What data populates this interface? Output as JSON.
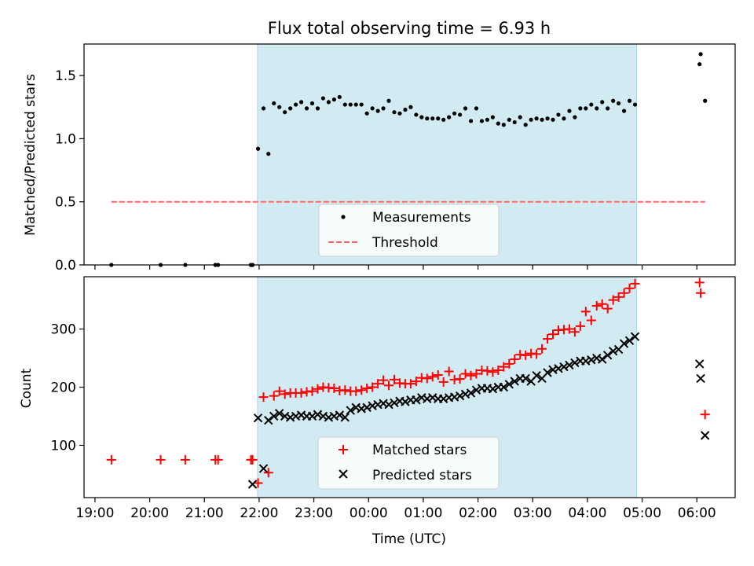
{
  "title": "Flux total observing time = 6.93 h",
  "colors": {
    "span": "#add8e6",
    "threshold": "#ff6666",
    "matched": "#ff0000",
    "predicted": "#000000",
    "measure": "#000000"
  },
  "chart_data": [
    {
      "type": "scatter",
      "ylabel": "Matched/Predicted stars",
      "xlabel": "",
      "xlim": [
        18.8,
        30.7
      ],
      "ylim": [
        0,
        1.75
      ],
      "yticks": [
        0,
        0.5,
        1,
        1.5
      ],
      "ytick_labels": [
        "0.0",
        "0.5",
        "1.0",
        "1.5"
      ],
      "grid": false,
      "legend_placement": "lower-center",
      "span": [
        21.97,
        28.9
      ],
      "series": [
        {
          "name": "Measurements",
          "marker": "dot",
          "x": [
            19.3,
            20.2,
            20.65,
            21.2,
            21.25,
            21.85,
            21.88,
            21.98,
            22.08,
            22.17,
            22.27,
            22.37,
            22.47,
            22.57,
            22.67,
            22.77,
            22.87,
            22.97,
            23.07,
            23.17,
            23.27,
            23.37,
            23.47,
            23.57,
            23.67,
            23.77,
            23.87,
            23.97,
            24.07,
            24.17,
            24.27,
            24.37,
            24.47,
            24.57,
            24.67,
            24.77,
            24.87,
            24.97,
            25.07,
            25.17,
            25.27,
            25.37,
            25.47,
            25.57,
            25.67,
            25.77,
            25.87,
            25.97,
            26.07,
            26.17,
            26.27,
            26.37,
            26.47,
            26.57,
            26.67,
            26.77,
            26.87,
            26.97,
            27.07,
            27.17,
            27.27,
            27.37,
            27.47,
            27.57,
            27.67,
            27.77,
            27.87,
            27.97,
            28.07,
            28.17,
            28.27,
            28.37,
            28.47,
            28.57,
            28.67,
            28.77,
            28.87,
            30.05,
            30.07,
            30.15
          ],
          "y": [
            0,
            0,
            0,
            0,
            0,
            0,
            0,
            0.92,
            1.24,
            0.88,
            1.28,
            1.25,
            1.21,
            1.24,
            1.27,
            1.29,
            1.24,
            1.28,
            1.24,
            1.32,
            1.29,
            1.31,
            1.33,
            1.27,
            1.27,
            1.27,
            1.27,
            1.2,
            1.24,
            1.22,
            1.24,
            1.3,
            1.21,
            1.2,
            1.23,
            1.25,
            1.19,
            1.17,
            1.16,
            1.16,
            1.16,
            1.15,
            1.17,
            1.2,
            1.19,
            1.24,
            1.14,
            1.24,
            1.14,
            1.15,
            1.17,
            1.12,
            1.11,
            1.15,
            1.13,
            1.17,
            1.11,
            1.15,
            1.16,
            1.15,
            1.16,
            1.15,
            1.19,
            1.16,
            1.22,
            1.17,
            1.24,
            1.24,
            1.27,
            1.24,
            1.29,
            1.24,
            1.3,
            1.28,
            1.22,
            1.3,
            1.27,
            1.59,
            1.67,
            1.3
          ]
        },
        {
          "name": "Threshold",
          "marker": "dashed-line",
          "x": [
            19.3,
            30.15
          ],
          "y": [
            0.5,
            0.5
          ]
        }
      ]
    },
    {
      "type": "scatter",
      "ylabel": "Count",
      "xlabel": "Time (UTC)",
      "xlim": [
        18.8,
        30.7
      ],
      "ylim": [
        10,
        390
      ],
      "yticks": [
        100,
        200,
        300
      ],
      "ytick_labels": [
        "100",
        "200",
        "300"
      ],
      "xticks": [
        19,
        20,
        21,
        22,
        23,
        24,
        25,
        26,
        27,
        28,
        29,
        30
      ],
      "xtick_labels": [
        "19:00",
        "20:00",
        "21:00",
        "22:00",
        "23:00",
        "00:00",
        "01:00",
        "02:00",
        "03:00",
        "04:00",
        "05:00",
        "06:00"
      ],
      "grid": false,
      "legend_placement": "lower-center",
      "span": [
        21.97,
        28.9
      ],
      "series": [
        {
          "name": "Matched stars",
          "marker": "plus",
          "x": [
            19.3,
            20.2,
            20.65,
            21.2,
            21.25,
            21.85,
            21.88,
            21.98,
            22.08,
            22.17,
            22.27,
            22.37,
            22.47,
            22.57,
            22.67,
            22.77,
            22.87,
            22.97,
            23.07,
            23.17,
            23.27,
            23.37,
            23.47,
            23.57,
            23.67,
            23.77,
            23.87,
            23.97,
            24.07,
            24.17,
            24.27,
            24.37,
            24.47,
            24.57,
            24.67,
            24.77,
            24.87,
            24.97,
            25.07,
            25.17,
            25.27,
            25.37,
            25.47,
            25.57,
            25.67,
            25.77,
            25.87,
            25.97,
            26.07,
            26.17,
            26.27,
            26.37,
            26.47,
            26.57,
            26.67,
            26.77,
            26.87,
            26.97,
            27.07,
            27.17,
            27.27,
            27.37,
            27.47,
            27.57,
            27.67,
            27.77,
            27.87,
            27.97,
            28.07,
            28.17,
            28.27,
            28.37,
            28.47,
            28.57,
            28.67,
            28.77,
            28.87,
            30.05,
            30.07,
            30.15
          ],
          "y": [
            75,
            75,
            75,
            75,
            75,
            75,
            75,
            35,
            183,
            53,
            185,
            193,
            188,
            190,
            190,
            190,
            192,
            193,
            197,
            200,
            199,
            198,
            194,
            195,
            193,
            193,
            195,
            198,
            200,
            206,
            212,
            203,
            213,
            207,
            206,
            206,
            210,
            216,
            215,
            218,
            221,
            209,
            227,
            213,
            214,
            223,
            220,
            223,
            229,
            228,
            226,
            229,
            235,
            240,
            248,
            256,
            255,
            258,
            257,
            266,
            283,
            291,
            298,
            299,
            300,
            295,
            305,
            330,
            315,
            340,
            343,
            335,
            350,
            355,
            362,
            370,
            378,
            380,
            362,
            153
          ]
        },
        {
          "name": "Predicted stars",
          "marker": "x",
          "x": [
            21.88,
            21.98,
            22.08,
            22.17,
            22.27,
            22.37,
            22.47,
            22.57,
            22.67,
            22.77,
            22.87,
            22.97,
            23.07,
            23.17,
            23.27,
            23.37,
            23.47,
            23.57,
            23.67,
            23.77,
            23.87,
            23.97,
            24.07,
            24.17,
            24.27,
            24.37,
            24.47,
            24.57,
            24.67,
            24.77,
            24.87,
            24.97,
            25.07,
            25.17,
            25.27,
            25.37,
            25.47,
            25.57,
            25.67,
            25.77,
            25.87,
            25.97,
            26.07,
            26.17,
            26.27,
            26.37,
            26.47,
            26.57,
            26.67,
            26.77,
            26.87,
            26.97,
            27.07,
            27.17,
            27.27,
            27.37,
            27.47,
            27.57,
            27.67,
            27.77,
            27.87,
            27.97,
            28.07,
            28.17,
            28.27,
            28.37,
            28.47,
            28.57,
            28.67,
            28.77,
            28.87,
            30.05,
            30.07,
            30.15
          ],
          "y": [
            33,
            147,
            60,
            143,
            150,
            155,
            150,
            148,
            150,
            152,
            150,
            150,
            153,
            150,
            148,
            150,
            152,
            148,
            160,
            165,
            163,
            165,
            168,
            170,
            172,
            170,
            173,
            176,
            175,
            178,
            178,
            182,
            180,
            182,
            180,
            180,
            182,
            183,
            185,
            188,
            190,
            195,
            198,
            198,
            197,
            200,
            200,
            205,
            210,
            215,
            215,
            210,
            220,
            215,
            225,
            230,
            232,
            235,
            238,
            242,
            245,
            245,
            247,
            250,
            248,
            255,
            262,
            265,
            275,
            280,
            287,
            240,
            215,
            117
          ]
        }
      ]
    }
  ]
}
